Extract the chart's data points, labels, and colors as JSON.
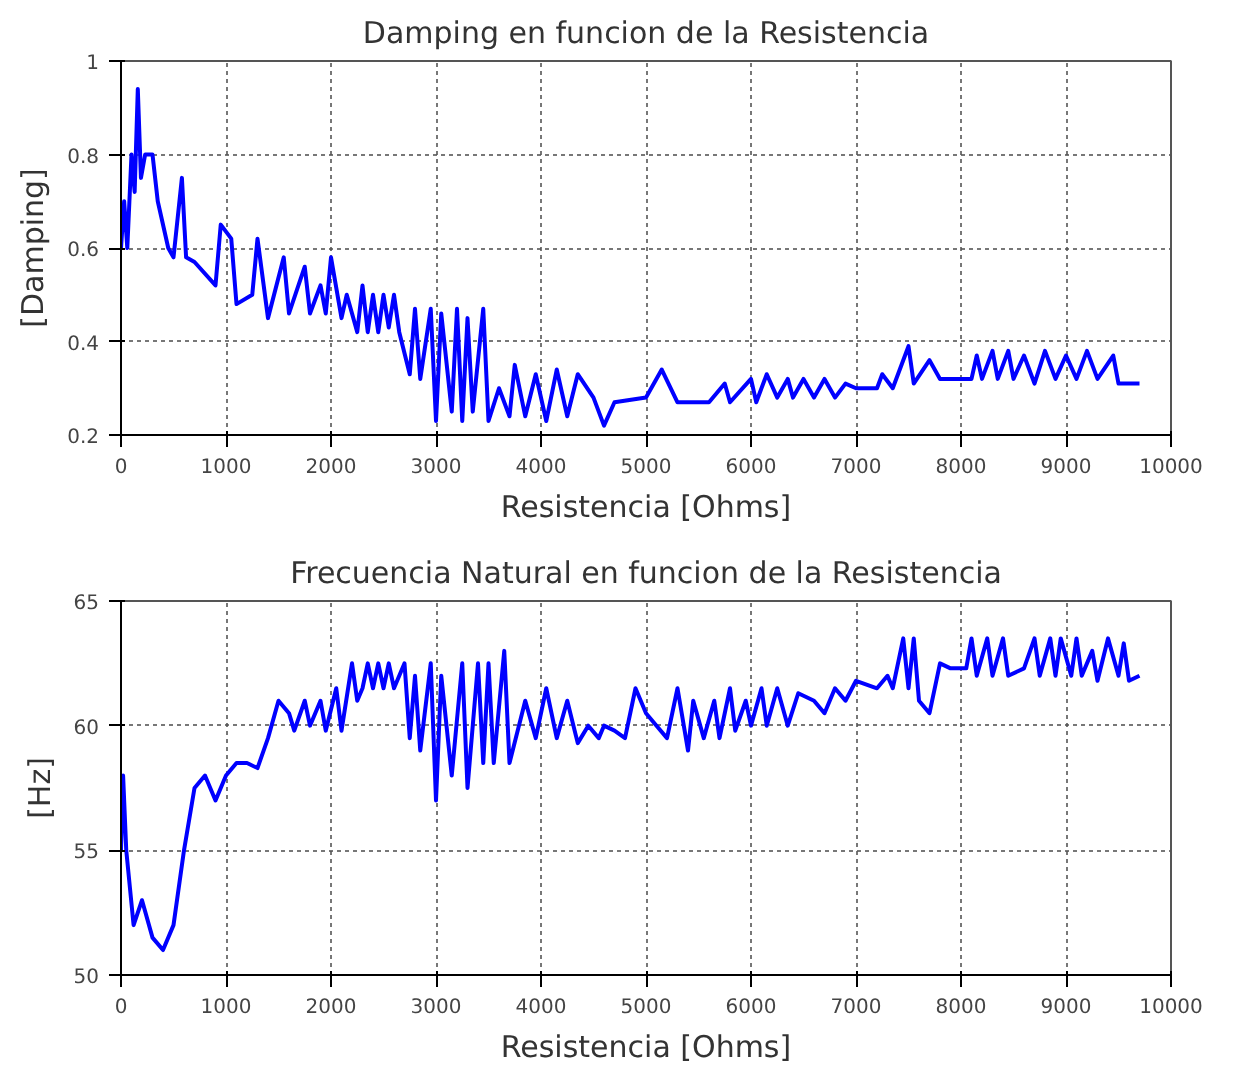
{
  "chart_data": [
    {
      "type": "line",
      "title": "Damping en funcion de la Resistencia",
      "xlabel": "Resistencia [Ohms]",
      "ylabel": "[Damping]",
      "xlim": [
        0,
        10000
      ],
      "ylim": [
        0.2,
        1
      ],
      "xticks": [
        0,
        1000,
        2000,
        3000,
        4000,
        5000,
        6000,
        7000,
        8000,
        9000,
        10000
      ],
      "yticks": [
        0.2,
        0.4,
        0.6,
        0.8,
        1
      ],
      "grid": true,
      "line_style": "solid",
      "marker": "none",
      "series": [
        {
          "color": "#0000ff",
          "x": [
            0,
            30,
            60,
            100,
            130,
            160,
            190,
            230,
            300,
            350,
            450,
            500,
            580,
            620,
            700,
            900,
            950,
            1050,
            1100,
            1250,
            1300,
            1400,
            1550,
            1600,
            1750,
            1800,
            1900,
            1950,
            2000,
            2100,
            2150,
            2250,
            2300,
            2350,
            2400,
            2450,
            2500,
            2550,
            2600,
            2650,
            2750,
            2800,
            2850,
            2950,
            3000,
            3050,
            3150,
            3200,
            3250,
            3300,
            3350,
            3450,
            3500,
            3600,
            3700,
            3750,
            3850,
            3950,
            4050,
            4150,
            4250,
            4350,
            4500,
            4600,
            4700,
            5000,
            5150,
            5300,
            5600,
            5750,
            5800,
            6000,
            6050,
            6150,
            6250,
            6350,
            6400,
            6500,
            6600,
            6700,
            6800,
            6900,
            7000,
            7200,
            7250,
            7350,
            7500,
            7550,
            7700,
            7800,
            8100,
            8150,
            8200,
            8300,
            8350,
            8450,
            8500,
            8600,
            8700,
            8800,
            8900,
            9000,
            9100,
            9200,
            9300,
            9450,
            9500,
            9700
          ],
          "values": [
            0.6,
            0.7,
            0.6,
            0.8,
            0.72,
            0.94,
            0.75,
            0.8,
            0.8,
            0.7,
            0.6,
            0.58,
            0.75,
            0.58,
            0.57,
            0.52,
            0.65,
            0.62,
            0.48,
            0.5,
            0.62,
            0.45,
            0.58,
            0.46,
            0.56,
            0.46,
            0.52,
            0.46,
            0.58,
            0.45,
            0.5,
            0.42,
            0.52,
            0.42,
            0.5,
            0.42,
            0.5,
            0.43,
            0.5,
            0.42,
            0.33,
            0.47,
            0.32,
            0.47,
            0.23,
            0.46,
            0.25,
            0.47,
            0.23,
            0.45,
            0.25,
            0.47,
            0.23,
            0.3,
            0.24,
            0.35,
            0.24,
            0.33,
            0.23,
            0.34,
            0.24,
            0.33,
            0.28,
            0.22,
            0.27,
            0.28,
            0.34,
            0.27,
            0.27,
            0.31,
            0.27,
            0.32,
            0.27,
            0.33,
            0.28,
            0.32,
            0.28,
            0.32,
            0.28,
            0.32,
            0.28,
            0.31,
            0.3,
            0.3,
            0.33,
            0.3,
            0.39,
            0.31,
            0.36,
            0.32,
            0.32,
            0.37,
            0.32,
            0.38,
            0.32,
            0.38,
            0.32,
            0.37,
            0.31,
            0.38,
            0.32,
            0.37,
            0.32,
            0.38,
            0.32,
            0.37,
            0.31,
            0.31
          ]
        }
      ]
    },
    {
      "type": "line",
      "title": "Frecuencia Natural en funcion de la Resistencia",
      "xlabel": "Resistencia [Ohms]",
      "ylabel": "[Hz]",
      "xlim": [
        0,
        10000
      ],
      "ylim": [
        50,
        65
      ],
      "xticks": [
        0,
        1000,
        2000,
        3000,
        4000,
        5000,
        6000,
        7000,
        8000,
        9000,
        10000
      ],
      "yticks": [
        50,
        55,
        60,
        65
      ],
      "grid": true,
      "line_style": "solid",
      "marker": "none",
      "series": [
        {
          "color": "#0000ff",
          "x": [
            0,
            20,
            50,
            120,
            200,
            300,
            400,
            500,
            600,
            700,
            800,
            900,
            1000,
            1100,
            1200,
            1300,
            1400,
            1500,
            1600,
            1650,
            1750,
            1800,
            1900,
            1950,
            2050,
            2100,
            2200,
            2250,
            2300,
            2350,
            2400,
            2450,
            2500,
            2550,
            2600,
            2700,
            2750,
            2800,
            2850,
            2950,
            3000,
            3050,
            3150,
            3250,
            3300,
            3400,
            3450,
            3500,
            3550,
            3650,
            3700,
            3850,
            3950,
            4050,
            4150,
            4250,
            4350,
            4450,
            4550,
            4600,
            4700,
            4800,
            4900,
            5000,
            5100,
            5200,
            5300,
            5400,
            5450,
            5550,
            5650,
            5700,
            5800,
            5850,
            5950,
            6000,
            6100,
            6150,
            6250,
            6350,
            6450,
            6600,
            6700,
            6800,
            6900,
            7000,
            7200,
            7300,
            7350,
            7450,
            7500,
            7550,
            7600,
            7700,
            7800,
            7900,
            8050,
            8100,
            8150,
            8250,
            8300,
            8400,
            8450,
            8600,
            8700,
            8750,
            8850,
            8900,
            8950,
            9050,
            9100,
            9150,
            9250,
            9300,
            9400,
            9500,
            9550,
            9600,
            9700
          ],
          "values": [
            55,
            58,
            55,
            52,
            53,
            51.5,
            51,
            52,
            55,
            57.5,
            58,
            57,
            58,
            58.5,
            58.5,
            58.3,
            59.5,
            61,
            60.5,
            59.8,
            61,
            60,
            61,
            59.8,
            61.5,
            59.8,
            62.5,
            61,
            61.5,
            62.5,
            61.5,
            62.5,
            61.5,
            62.5,
            61.5,
            62.5,
            59.5,
            62,
            59,
            62.5,
            57,
            62,
            58,
            62.5,
            57.5,
            62.5,
            58.5,
            62.5,
            58.5,
            63,
            58.5,
            61,
            59.5,
            61.5,
            59.5,
            61,
            59.3,
            60,
            59.5,
            60,
            59.8,
            59.5,
            61.5,
            60.5,
            60,
            59.5,
            61.5,
            59,
            61,
            59.5,
            61,
            59.5,
            61.5,
            59.8,
            61,
            60,
            61.5,
            60,
            61.5,
            60,
            61.3,
            61,
            60.5,
            61.5,
            61,
            61.8,
            61.5,
            62,
            61.5,
            63.5,
            61.5,
            63.5,
            61,
            60.5,
            62.5,
            62.3,
            62.3,
            63.5,
            62,
            63.5,
            62,
            63.5,
            62,
            62.3,
            63.5,
            62,
            63.5,
            62,
            63.5,
            62,
            63.5,
            62,
            63,
            61.8,
            63.5,
            62,
            63.3,
            61.8,
            62
          ]
        }
      ]
    }
  ]
}
